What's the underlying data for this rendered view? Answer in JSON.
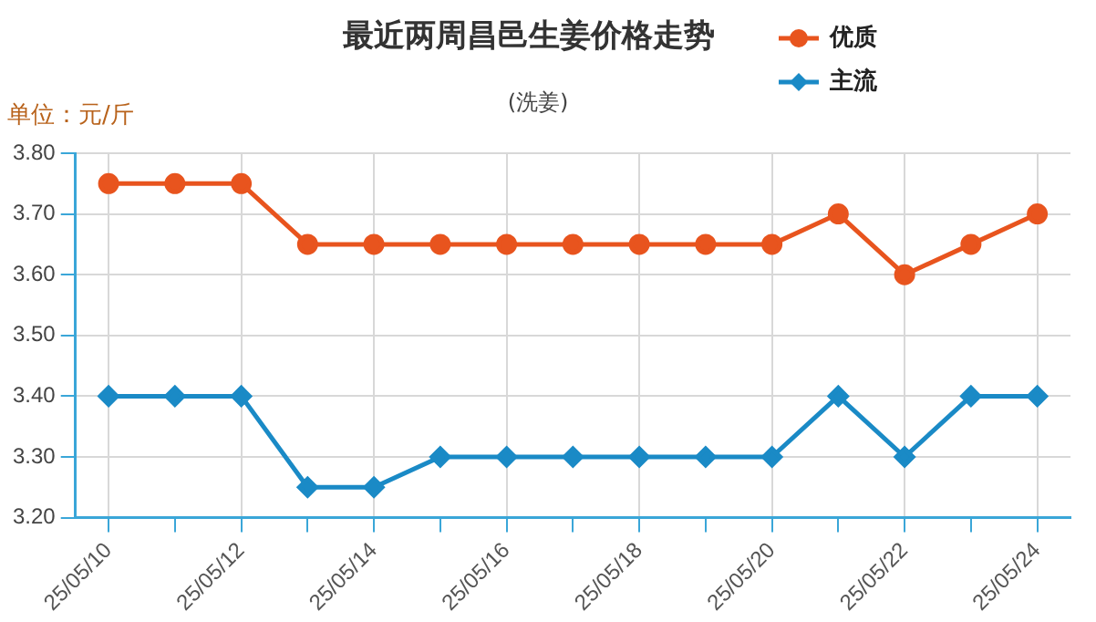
{
  "chart_data": {
    "type": "line",
    "title": "最近两周昌邑生姜价格走势",
    "subtitle": "(洗姜)",
    "ylabel": "单位：元/斤",
    "categories": [
      "25/05/10",
      null,
      "25/05/12",
      null,
      "25/05/14",
      null,
      "25/05/16",
      null,
      "25/05/18",
      null,
      "25/05/20",
      null,
      "25/05/22",
      null,
      "25/05/24"
    ],
    "series": [
      {
        "name": "优质",
        "color": "#e8541e",
        "marker": "circle",
        "values": [
          3.75,
          3.75,
          3.75,
          3.65,
          3.65,
          3.65,
          3.65,
          3.65,
          3.65,
          3.65,
          3.65,
          3.7,
          3.6,
          3.65,
          3.7
        ]
      },
      {
        "name": "主流",
        "color": "#1a8ac6",
        "marker": "diamond",
        "values": [
          3.4,
          3.4,
          3.4,
          3.25,
          3.25,
          3.3,
          3.3,
          3.3,
          3.3,
          3.3,
          3.3,
          3.4,
          3.3,
          3.4,
          3.4
        ]
      }
    ],
    "ylim": [
      3.2,
      3.8
    ],
    "yticks": [
      {
        "value": 3.2,
        "label": "3.20"
      },
      {
        "value": 3.3,
        "label": "3.30"
      },
      {
        "value": 3.4,
        "label": "3.40"
      },
      {
        "value": 3.5,
        "label": "3.50"
      },
      {
        "value": 3.6,
        "label": "3.60"
      },
      {
        "value": 3.7,
        "label": "3.70"
      },
      {
        "value": 3.8,
        "label": "3.80"
      }
    ],
    "grid": true,
    "legend": "top right"
  }
}
